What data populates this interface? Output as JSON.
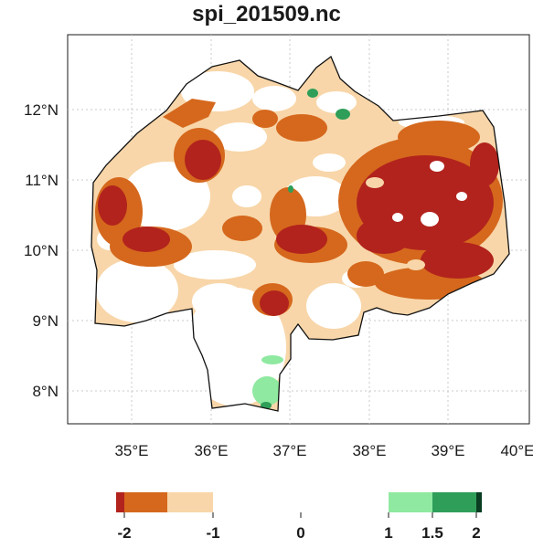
{
  "title": "spi_201509.nc",
  "map": {
    "lon_labels": [
      "35°E",
      "36°E",
      "37°E",
      "38°E",
      "39°E",
      "40°E"
    ],
    "lat_labels": [
      "12°N",
      "11°N",
      "10°N",
      "9°N",
      "8°N"
    ],
    "colors": {
      "extreme_dry": "#b2231d",
      "severe_dry": "#d5681d",
      "moderate_dry": "#f8d6a9",
      "normal": "#ffffff",
      "moderate_wet": "#8fe9a0",
      "severe_wet": "#2e9e59",
      "extreme_wet": "#0a3d22"
    }
  },
  "legend": {
    "tick_labels": [
      "-2",
      "-1",
      "0",
      "1",
      "1.5",
      "2"
    ]
  }
}
